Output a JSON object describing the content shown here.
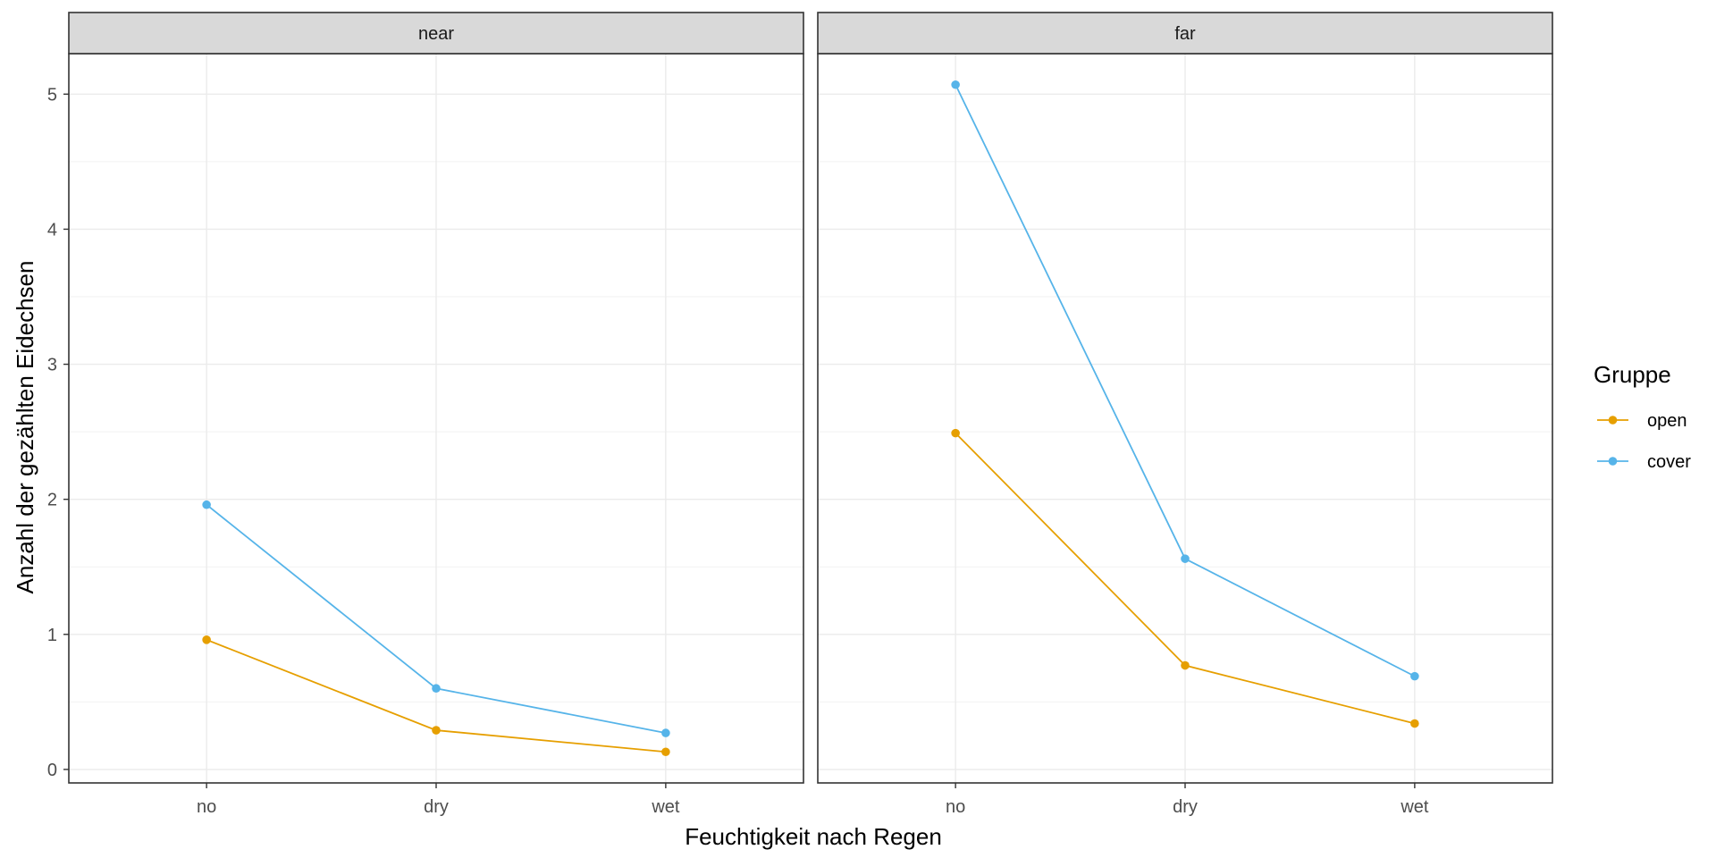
{
  "chart_data": {
    "type": "line",
    "xlabel": "Feuchtigkeit nach Regen",
    "ylabel": "Anzahl der gezählten Eidechsen",
    "categories": [
      "no",
      "dry",
      "wet"
    ],
    "yticks": [
      0,
      1,
      2,
      3,
      4,
      5
    ],
    "ylim": [
      -0.1,
      5.3
    ],
    "grid": true,
    "legend": {
      "title": "Gruppe",
      "placement": "right",
      "entries": [
        {
          "name": "open",
          "color": "#E69F00"
        },
        {
          "name": "cover",
          "color": "#56B4E9"
        }
      ]
    },
    "facets": [
      {
        "label": "near",
        "series": [
          {
            "name": "open",
            "values": [
              0.96,
              0.29,
              0.13
            ]
          },
          {
            "name": "cover",
            "values": [
              1.96,
              0.6,
              0.27
            ]
          }
        ]
      },
      {
        "label": "far",
        "series": [
          {
            "name": "open",
            "values": [
              2.49,
              0.77,
              0.34
            ]
          },
          {
            "name": "cover",
            "values": [
              5.07,
              1.56,
              0.69
            ]
          }
        ]
      }
    ]
  }
}
